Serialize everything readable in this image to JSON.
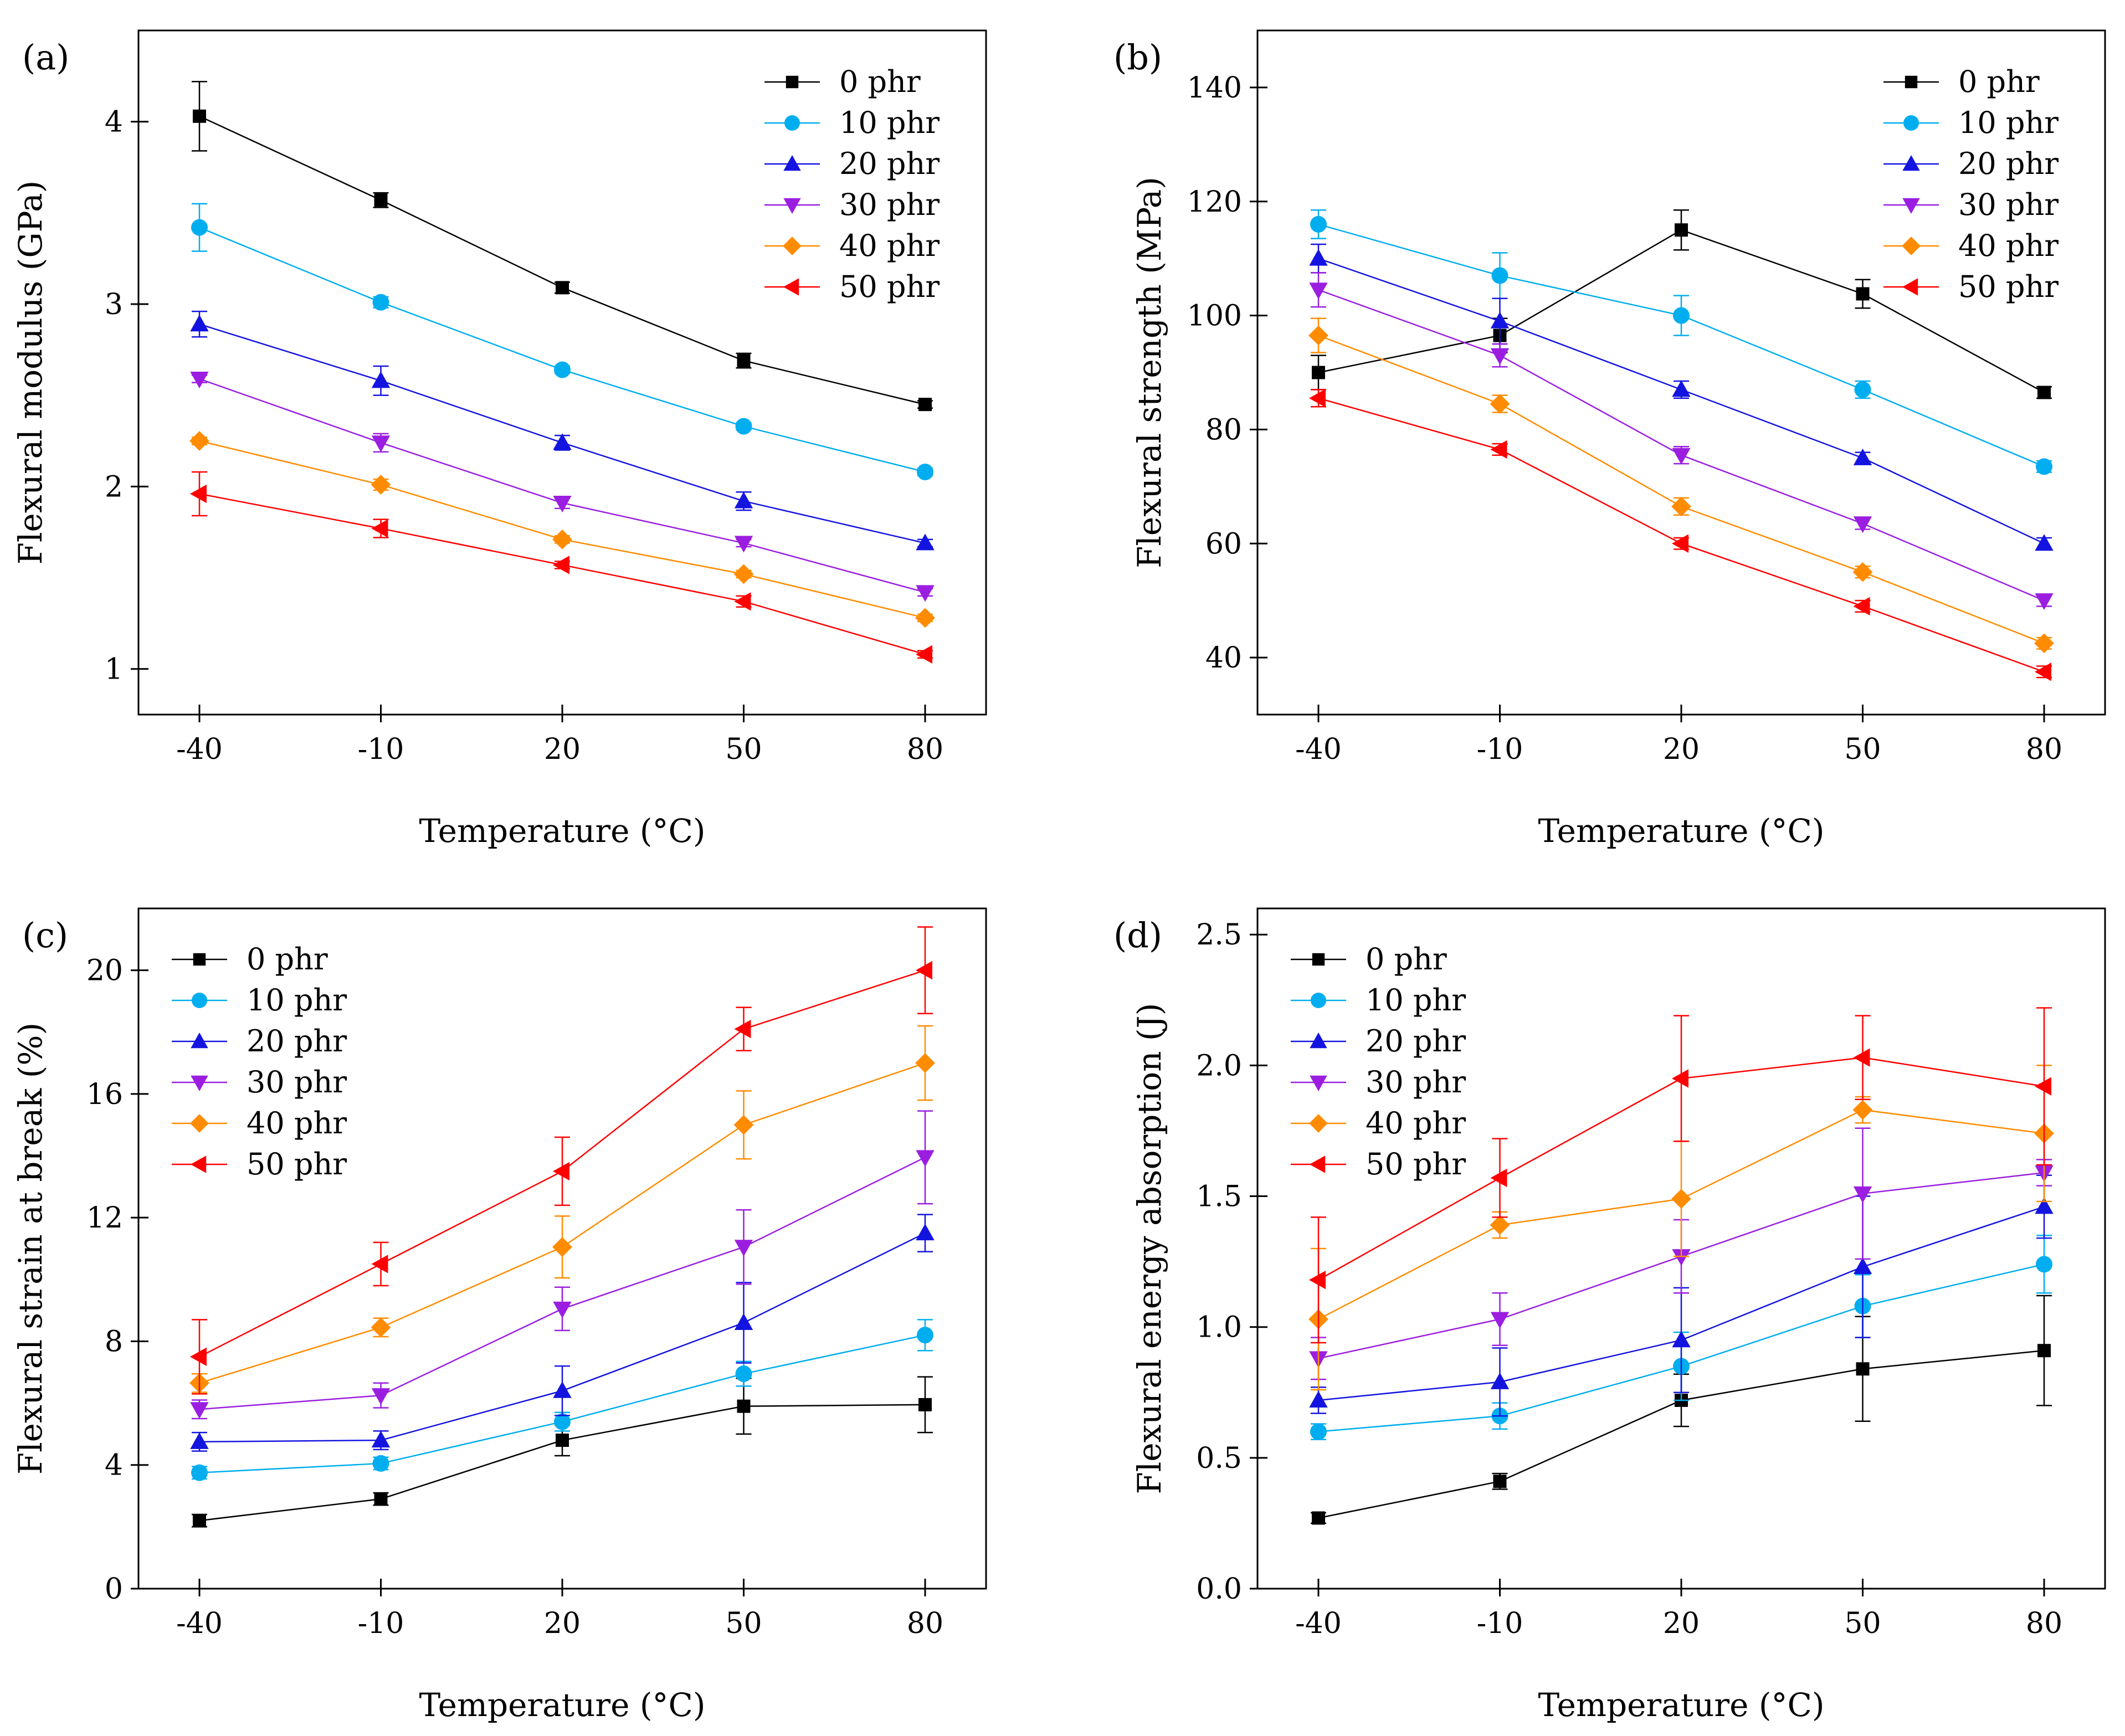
{
  "chart_data": [
    {
      "panel": "(a)",
      "type": "line",
      "xlabel": "Temperature (°C)",
      "ylabel": "Flexural modulus (GPa)",
      "categories": [
        "-40",
        "-10",
        "20",
        "50",
        "80"
      ],
      "ylim": [
        0.75,
        4.5
      ],
      "yticks": [
        1,
        2,
        3,
        4
      ],
      "ytick_labels": [
        "1",
        "2",
        "3",
        "4"
      ],
      "legend_position": "top-right",
      "series": [
        {
          "name": "0 phr",
          "marker": "square",
          "color": "#000000",
          "values": [
            4.03,
            3.57,
            3.09,
            2.69,
            2.45
          ],
          "err": [
            0.19,
            0.04,
            0.03,
            0.04,
            0.02
          ]
        },
        {
          "name": "10 phr",
          "marker": "circle",
          "color": "#00aeef",
          "values": [
            3.42,
            3.01,
            2.64,
            2.33,
            2.08
          ],
          "err": [
            0.13,
            0.03,
            0.02,
            0.02,
            0.02
          ]
        },
        {
          "name": "20 phr",
          "marker": "triangle-up",
          "color": "#1414e0",
          "values": [
            2.89,
            2.58,
            2.24,
            1.92,
            1.69
          ],
          "err": [
            0.07,
            0.08,
            0.04,
            0.05,
            0.02
          ]
        },
        {
          "name": "30 phr",
          "marker": "triangle-down",
          "color": "#9b1ee0",
          "values": [
            2.59,
            2.24,
            1.91,
            1.69,
            1.42
          ],
          "err": [
            0.02,
            0.05,
            0.03,
            0.02,
            0.02
          ]
        },
        {
          "name": "40 phr",
          "marker": "diamond",
          "color": "#ff8c00",
          "values": [
            2.25,
            2.01,
            1.71,
            1.52,
            1.28
          ],
          "err": [
            0.02,
            0.03,
            0.02,
            0.02,
            0.02
          ]
        },
        {
          "name": "50 phr",
          "marker": "triangle-left",
          "color": "#ff0000",
          "values": [
            1.96,
            1.77,
            1.57,
            1.37,
            1.08
          ],
          "err": [
            0.12,
            0.05,
            0.02,
            0.03,
            0.02
          ]
        }
      ]
    },
    {
      "panel": "(b)",
      "type": "line",
      "xlabel": "Temperature (°C)",
      "ylabel": "Flexural strength (MPa)",
      "categories": [
        "-40",
        "-10",
        "20",
        "50",
        "80"
      ],
      "ylim": [
        30,
        150
      ],
      "yticks": [
        40,
        60,
        80,
        100,
        120,
        140
      ],
      "ytick_labels": [
        "40",
        "60",
        "80",
        "100",
        "120",
        "140"
      ],
      "legend_position": "top-right",
      "series": [
        {
          "name": "0 phr",
          "marker": "square",
          "color": "#000000",
          "values": [
            90,
            96.5,
            115,
            103.8,
            86.5
          ],
          "err": [
            3,
            3,
            3.5,
            2.5,
            1
          ]
        },
        {
          "name": "10 phr",
          "marker": "circle",
          "color": "#00aeef",
          "values": [
            116,
            107,
            100,
            87,
            73.5
          ],
          "err": [
            2.5,
            4,
            3.5,
            1.5,
            1
          ]
        },
        {
          "name": "20 phr",
          "marker": "triangle-up",
          "color": "#1414e0",
          "values": [
            110,
            99,
            87,
            75,
            60
          ],
          "err": [
            2.5,
            4,
            1.5,
            1,
            1
          ]
        },
        {
          "name": "30 phr",
          "marker": "triangle-down",
          "color": "#9b1ee0",
          "values": [
            104.5,
            93,
            75.5,
            63.5,
            50
          ],
          "err": [
            3,
            2,
            1.5,
            1,
            1
          ]
        },
        {
          "name": "40 phr",
          "marker": "diamond",
          "color": "#ff8c00",
          "values": [
            96.5,
            84.5,
            66.5,
            55,
            42.5
          ],
          "err": [
            3,
            1.5,
            1.5,
            1,
            1
          ]
        },
        {
          "name": "50 phr",
          "marker": "triangle-left",
          "color": "#ff0000",
          "values": [
            85.5,
            76.5,
            60,
            49,
            37.5
          ],
          "err": [
            1.5,
            1,
            1,
            1,
            1
          ]
        }
      ]
    },
    {
      "panel": "(c)",
      "type": "line",
      "xlabel": "Temperature (°C)",
      "ylabel": "Flexural strain at break (%)",
      "categories": [
        "-40",
        "-10",
        "20",
        "50",
        "80"
      ],
      "ylim": [
        0,
        22
      ],
      "yticks": [
        0,
        4,
        8,
        12,
        16,
        20
      ],
      "ytick_labels": [
        "0",
        "4",
        "8",
        "12",
        "16",
        "20"
      ],
      "legend_position": "top-left",
      "series": [
        {
          "name": "0 phr",
          "marker": "square",
          "color": "#000000",
          "values": [
            2.2,
            2.9,
            4.8,
            5.9,
            5.95
          ],
          "err": [
            0.2,
            0.2,
            0.5,
            0.9,
            0.9
          ]
        },
        {
          "name": "10 phr",
          "marker": "circle",
          "color": "#00aeef",
          "values": [
            3.75,
            4.05,
            5.4,
            6.95,
            8.2
          ],
          "err": [
            0.2,
            0.2,
            0.3,
            0.4,
            0.5
          ]
        },
        {
          "name": "20 phr",
          "marker": "triangle-up",
          "color": "#1414e0",
          "values": [
            4.75,
            4.8,
            6.4,
            8.6,
            11.5
          ],
          "err": [
            0.3,
            0.3,
            0.8,
            1.3,
            0.6
          ]
        },
        {
          "name": "30 phr",
          "marker": "triangle-down",
          "color": "#9b1ee0",
          "values": [
            5.8,
            6.25,
            9.05,
            11.05,
            13.95
          ],
          "err": [
            0.3,
            0.4,
            0.7,
            1.2,
            1.5
          ]
        },
        {
          "name": "40 phr",
          "marker": "diamond",
          "color": "#ff8c00",
          "values": [
            6.65,
            8.45,
            11.05,
            15,
            17
          ],
          "err": [
            0.3,
            0.3,
            1,
            1.1,
            1.2
          ]
        },
        {
          "name": "50 phr",
          "marker": "triangle-left",
          "color": "#ff0000",
          "values": [
            7.5,
            10.5,
            13.5,
            18.1,
            20
          ],
          "err": [
            1.2,
            0.7,
            1.1,
            0.7,
            1.4
          ]
        }
      ]
    },
    {
      "panel": "(d)",
      "type": "line",
      "xlabel": "Temperature (°C)",
      "ylabel": "Flexural energy absorption (J)",
      "categories": [
        "-40",
        "-10",
        "20",
        "50",
        "80"
      ],
      "ylim": [
        0,
        2.6
      ],
      "yticks": [
        0,
        0.5,
        1,
        1.5,
        2,
        2.5
      ],
      "ytick_labels": [
        "0.0",
        "0.5",
        "1.0",
        "1.5",
        "2.0",
        "2.5"
      ],
      "legend_position": "top-left",
      "series": [
        {
          "name": "0 phr",
          "marker": "square",
          "color": "#000000",
          "values": [
            0.27,
            0.41,
            0.72,
            0.84,
            0.91
          ],
          "err": [
            0.02,
            0.03,
            0.1,
            0.2,
            0.21
          ]
        },
        {
          "name": "10 phr",
          "marker": "circle",
          "color": "#00aeef",
          "values": [
            0.6,
            0.66,
            0.85,
            1.08,
            1.24
          ],
          "err": [
            0.03,
            0.05,
            0.13,
            0.12,
            0.11
          ]
        },
        {
          "name": "20 phr",
          "marker": "triangle-up",
          "color": "#1414e0",
          "values": [
            0.72,
            0.79,
            0.95,
            1.23,
            1.46
          ],
          "err": [
            0.05,
            0.13,
            0.2,
            0.27,
            0.12
          ]
        },
        {
          "name": "30 phr",
          "marker": "triangle-down",
          "color": "#9b1ee0",
          "values": [
            0.88,
            1.03,
            1.27,
            1.51,
            1.59
          ],
          "err": [
            0.08,
            0.1,
            0.14,
            0.25,
            0.05
          ]
        },
        {
          "name": "40 phr",
          "marker": "diamond",
          "color": "#ff8c00",
          "values": [
            1.03,
            1.39,
            1.49,
            1.83,
            1.74
          ],
          "err": [
            0.27,
            0.05,
            0.22,
            0.05,
            0.26
          ]
        },
        {
          "name": "50 phr",
          "marker": "triangle-left",
          "color": "#ff0000",
          "values": [
            1.18,
            1.57,
            1.95,
            2.03,
            1.92
          ],
          "err": [
            0.24,
            0.15,
            0.24,
            0.16,
            0.3
          ]
        }
      ]
    }
  ]
}
